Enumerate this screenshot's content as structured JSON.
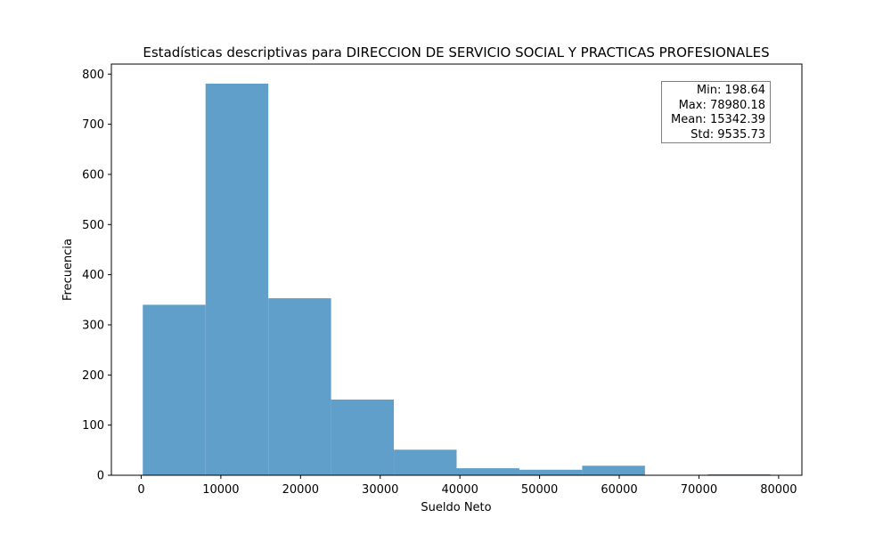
{
  "chart_data": {
    "type": "bar",
    "title": "Estadísticas descriptivas para DIRECCION DE SERVICIO SOCIAL Y PRACTICAS PROFESIONALES",
    "xlabel": "Sueldo Neto",
    "ylabel": "Frecuencia",
    "xlim": [
      -3741,
      82920
    ],
    "ylim": [
      0,
      820
    ],
    "xticks": [
      0,
      10000,
      20000,
      30000,
      40000,
      50000,
      60000,
      70000,
      80000
    ],
    "yticks": [
      0,
      100,
      200,
      300,
      400,
      500,
      600,
      700,
      800
    ],
    "bin_edges": [
      198.64,
      8076.79,
      15954.95,
      23833.1,
      31711.26,
      39589.41,
      47467.56,
      55345.72,
      63223.87,
      71102.03,
      78980.18
    ],
    "values": [
      340,
      781,
      353,
      151,
      51,
      14,
      11,
      19,
      0,
      2
    ],
    "bar_color": "#619fcb",
    "grid": false,
    "annotations": [
      {
        "label": "Min:",
        "value": "198.64"
      },
      {
        "label": "Max:",
        "value": "78980.18"
      },
      {
        "label": "Mean:",
        "value": "15342.39"
      },
      {
        "label": "Std:",
        "value": "9535.73"
      }
    ],
    "annotation_position": "top-right"
  }
}
